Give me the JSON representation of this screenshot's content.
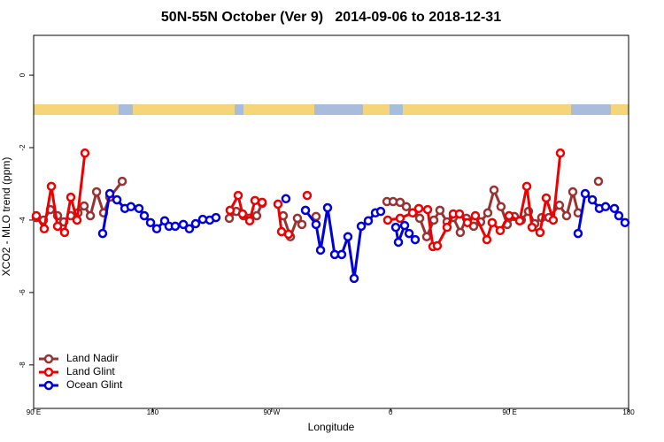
{
  "chart_data": {
    "type": "line",
    "title": "50N-55N October (Ver 9)   2014-09-06 to 2018-12-31",
    "x_label": "Longitude",
    "y_label": "XCO2 - MLO trend (ppm)",
    "xlim": [
      90,
      540
    ],
    "ylim": [
      -9.2,
      1.1
    ],
    "xticks": [
      {
        "value": 90,
        "label": "90 E"
      },
      180,
      {
        "value": 270,
        "label": "90 W"
      },
      {
        "value": 360,
        "label": "0"
      },
      {
        "value": 450,
        "label": "90 E"
      },
      {
        "value": 540,
        "label": "180"
      }
    ],
    "yticks": [
      0,
      -2,
      -4,
      -6,
      -8
    ],
    "legend": "bottom-left",
    "series": [
      {
        "name": "Land Nadir",
        "color": "#993333",
        "x": [
          92.0,
          97.4,
          102.7,
          108.1,
          112.8,
          118.1,
          123.5,
          128.2,
          132.9,
          137.6,
          142.9,
          147.6,
          157.0,
          null,
          238.0,
          243.3,
          248.7,
          253.4,
          258.7,
          262.8,
          null,
          278.8,
          284.2,
          289.5,
          292.9,
          null,
          303.6,
          null,
          357.2,
          361.9,
          367.2,
          371.9,
          377.3,
          382.0,
          387.3,
          392.7,
          397.3,
          402.7,
          407.4,
          412.7,
          417.4,
          422.8,
          428.1,
          433.5,
          438.2,
          443.5,
          448.2,
          453.6,
          458.9,
          464.3,
          469.0,
          474.3,
          479.7,
          487.7,
          493.1,
          497.8,
          501.8,
          null,
          517.2
        ],
        "values": [
          -3.93,
          -4.0,
          -3.71,
          -3.88,
          -4.05,
          -3.88,
          -3.8,
          -3.61,
          -3.88,
          -3.22,
          -3.8,
          -3.37,
          -2.93,
          null,
          -3.95,
          -3.76,
          -3.88,
          -3.95,
          -3.88,
          -3.54,
          null,
          -3.88,
          -4.46,
          -3.95,
          -4.12,
          null,
          -3.9,
          null,
          -3.49,
          -3.49,
          -3.51,
          -3.63,
          -3.8,
          -3.95,
          -4.46,
          -4.0,
          -3.73,
          -4.05,
          -3.93,
          -4.34,
          -3.95,
          -4.17,
          -4.05,
          -3.8,
          -3.17,
          -3.63,
          -4.12,
          -3.9,
          -4.0,
          -3.76,
          -4.1,
          -3.93,
          -3.93,
          -3.59,
          -3.88,
          -3.22,
          -3.8,
          null,
          -2.93
        ]
      },
      {
        "name": "Land Glint",
        "color": "#ee0000",
        "x": [
          92.0,
          98.0,
          103.4,
          108.1,
          113.4,
          118.1,
          122.8,
          128.8,
          null,
          238.6,
          244.7,
          248.0,
          253.4,
          257.4,
          262.8,
          null,
          274.8,
          277.5,
          282.8,
          null,
          296.9,
          null,
          357.8,
          367.2,
          376.6,
          381.3,
          388.0,
          392.0,
          395.3,
          402.7,
          407.4,
          412.1,
          418.1,
          424.1,
          432.8,
          436.8,
          442.9,
          449.6,
          457.6,
          463.0,
          467.0,
          473.0,
          477.7,
          483.0,
          488.4
        ],
        "values": [
          -3.88,
          -4.24,
          -3.07,
          -4.17,
          -4.34,
          -3.37,
          -4.0,
          -2.15,
          null,
          -3.73,
          -3.32,
          -3.83,
          -4.02,
          -3.46,
          -3.51,
          null,
          -3.56,
          -4.32,
          -4.39,
          null,
          -3.32,
          null,
          -4.0,
          -3.95,
          -3.8,
          -3.68,
          -3.71,
          -4.73,
          -4.71,
          -4.2,
          -3.83,
          -3.83,
          -4.07,
          -3.88,
          -4.54,
          -4.07,
          -4.29,
          -3.88,
          -4.02,
          -3.07,
          -4.2,
          -4.34,
          -3.39,
          -4.0,
          -2.15
        ]
      },
      {
        "name": "Ocean Glint",
        "color": "#0000dd",
        "x": [
          142.2,
          147.6,
          153.0,
          159.0,
          163.6,
          169.7,
          173.7,
          178.4,
          183.1,
          189.1,
          192.4,
          197.1,
          203.2,
          207.8,
          212.5,
          217.9,
          223.2,
          227.9,
          null,
          280.8,
          null,
          295.6,
          303.6,
          307.0,
          312.3,
          317.7,
          323.0,
          327.7,
          332.4,
          337.8,
          343.1,
          348.5,
          352.5,
          null,
          363.9,
          365.9,
          370.6,
          374.0,
          378.6,
          null,
          501.8,
          507.2,
          512.6,
          517.9,
          522.6,
          529.3,
          532.6,
          537.3
        ],
        "values": [
          -4.37,
          -3.27,
          -3.44,
          -3.68,
          -3.63,
          -3.68,
          -3.88,
          -4.07,
          -4.24,
          -4.02,
          -4.17,
          -4.17,
          -4.12,
          -4.24,
          -4.1,
          -3.98,
          -4.0,
          -3.93,
          null,
          -3.41,
          null,
          -3.73,
          -4.12,
          -4.83,
          -3.66,
          -4.95,
          -4.95,
          -4.46,
          -5.61,
          -4.17,
          -4.02,
          -3.8,
          -3.76,
          null,
          -4.2,
          -4.61,
          -4.15,
          -4.37,
          -4.54,
          null,
          -4.37,
          -3.27,
          -3.44,
          -3.68,
          -3.63,
          -3.68,
          -3.88,
          -4.07
        ]
      }
    ]
  }
}
